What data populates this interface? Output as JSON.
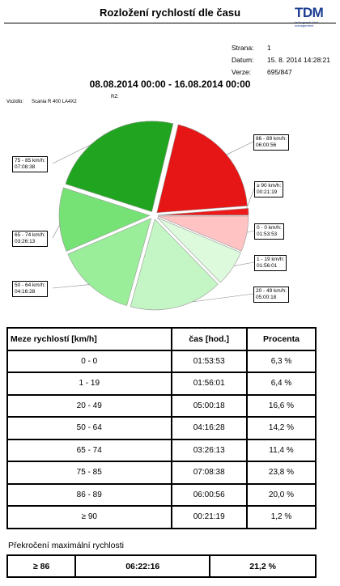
{
  "report": {
    "title": "Rozložení rychlostí dle času",
    "logo": {
      "text": "TDM",
      "subtext": "tachograph data management"
    },
    "meta": [
      {
        "label": "Strana:",
        "value": "1"
      },
      {
        "label": "Datum:",
        "value": "15. 8. 2014 14:28:21"
      },
      {
        "label": "Verze:",
        "value": "695/847"
      }
    ],
    "period": "08.08.2014 00:00 - 16.08.2014 00:00",
    "rz_label": "RZ:",
    "driver_label": "Vozidlo:",
    "driver_value": "Scania R 400 LA4X2"
  },
  "chart_data": {
    "type": "pie",
    "slices": [
      {
        "label": "0 - 0 km/h:",
        "time": "01:53:53",
        "percent": 6.3,
        "color": "#ffc3c3"
      },
      {
        "label": "1 - 19 km/h:",
        "time": "01:56:01",
        "percent": 6.4,
        "color": "#ddfadd"
      },
      {
        "label": "20 - 49 km/h:",
        "time": "05:00:18",
        "percent": 16.6,
        "color": "#c4f5c4"
      },
      {
        "label": "50 - 64 km/h:",
        "time": "04:16:28",
        "percent": 14.2,
        "color": "#9aee9a"
      },
      {
        "label": "65 - 74 km/h:",
        "time": "03:26:13",
        "percent": 11.4,
        "color": "#76e276"
      },
      {
        "label": "75 - 85 km/h:",
        "time": "07:08:38",
        "percent": 23.8,
        "color": "#21a521"
      },
      {
        "label": "86 - 89 km/h:",
        "time": "06:00:56",
        "percent": 20.0,
        "color": "#e61616"
      },
      {
        "label": "≥ 90 km/h:",
        "time": "00:21:19",
        "percent": 1.2,
        "color": "#ee1a1a"
      }
    ]
  },
  "table": {
    "headers": [
      "Meze rychlostí [km/h]",
      "čas [hod.]",
      "Procenta"
    ],
    "rows": [
      [
        "0 - 0",
        "01:53:53",
        "6,3 %"
      ],
      [
        "1 - 19",
        "01:56:01",
        "6,4 %"
      ],
      [
        "20 - 49",
        "05:00:18",
        "16,6 %"
      ],
      [
        "50 - 64",
        "04:16:28",
        "14,2 %"
      ],
      [
        "65 - 74",
        "03:26:13",
        "11,4 %"
      ],
      [
        "75 - 85",
        "07:08:38",
        "23,8 %"
      ],
      [
        "86 - 89",
        "06:00:56",
        "20,0 %"
      ],
      [
        "≥ 90",
        "00:21:19",
        "1,2 %"
      ]
    ]
  },
  "exceed": {
    "title": "Překročení maximální rychlosti",
    "row": [
      "≥ 86",
      "06:22:16",
      "21,2 %"
    ]
  }
}
